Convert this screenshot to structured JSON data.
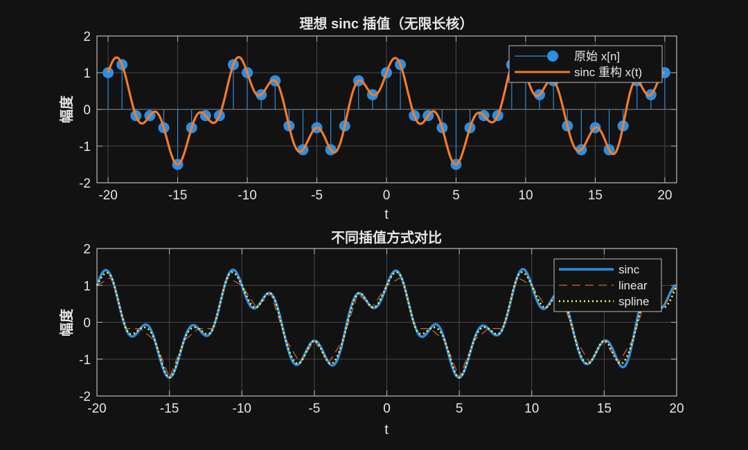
{
  "chart_data": [
    {
      "type": "line",
      "title": "理想 sinc 插值（无限长核）",
      "xlabel": "t",
      "ylabel": "幅度",
      "xlim": [
        -20.8,
        20.85
      ],
      "ylim": [
        -2,
        2
      ],
      "xticks": [
        -20,
        -15,
        -10,
        -5,
        0,
        5,
        10,
        15,
        20
      ],
      "yticks": [
        -2,
        -1,
        0,
        1,
        2
      ],
      "grid": true,
      "legend_position": "top-right",
      "series": [
        {
          "name": "原始 x[n]",
          "style": "stem",
          "color": "#2b8fe3",
          "x": [
            -20,
            -19,
            -18,
            -17,
            -16,
            -15,
            -14,
            -13,
            -12,
            -11,
            -10,
            -9,
            -8,
            -7,
            -6,
            -5,
            -4,
            -3,
            -2,
            -1,
            0,
            1,
            2,
            3,
            4,
            5,
            6,
            7,
            8,
            9,
            10,
            11,
            12,
            13,
            14,
            15,
            16,
            17,
            18,
            19,
            20
          ],
          "y": [
            1,
            1.22,
            -0.17,
            -0.17,
            -0.5,
            -1.5,
            -0.5,
            -0.17,
            -0.17,
            1.22,
            1,
            0.4,
            0.78,
            -0.45,
            -1.1,
            -0.5,
            -1.1,
            -0.45,
            0.78,
            0.4,
            1,
            1.22,
            -0.17,
            -0.17,
            -0.5,
            -1.5,
            -0.5,
            -0.17,
            -0.17,
            1.22,
            1,
            0.4,
            0.78,
            -0.45,
            -1.1,
            -0.5,
            -1.1,
            -0.45,
            0.78,
            0.4,
            1
          ]
        },
        {
          "name": "sinc 重构 x(t)",
          "style": "line",
          "color": "#f47b2a",
          "method": "sinc",
          "t_range": [
            -20,
            20
          ]
        }
      ]
    },
    {
      "type": "line",
      "title": "不同插值方式对比",
      "xlabel": "t",
      "ylabel": "幅度",
      "xlim": [
        -20,
        20
      ],
      "ylim": [
        -2,
        2
      ],
      "xticks": [
        -20,
        -15,
        -10,
        -5,
        0,
        5,
        10,
        15,
        20
      ],
      "yticks": [
        -2,
        -1,
        0,
        1,
        2
      ],
      "grid": true,
      "legend_position": "top-right",
      "series": [
        {
          "name": "sinc",
          "style": "solid",
          "color": "#2b8fe3",
          "method": "sinc"
        },
        {
          "name": "linear",
          "style": "dashed",
          "color": "#e0662a",
          "method": "linear"
        },
        {
          "name": "spline",
          "style": "dotted",
          "color": "#ffff55",
          "method": "spline"
        }
      ]
    }
  ]
}
